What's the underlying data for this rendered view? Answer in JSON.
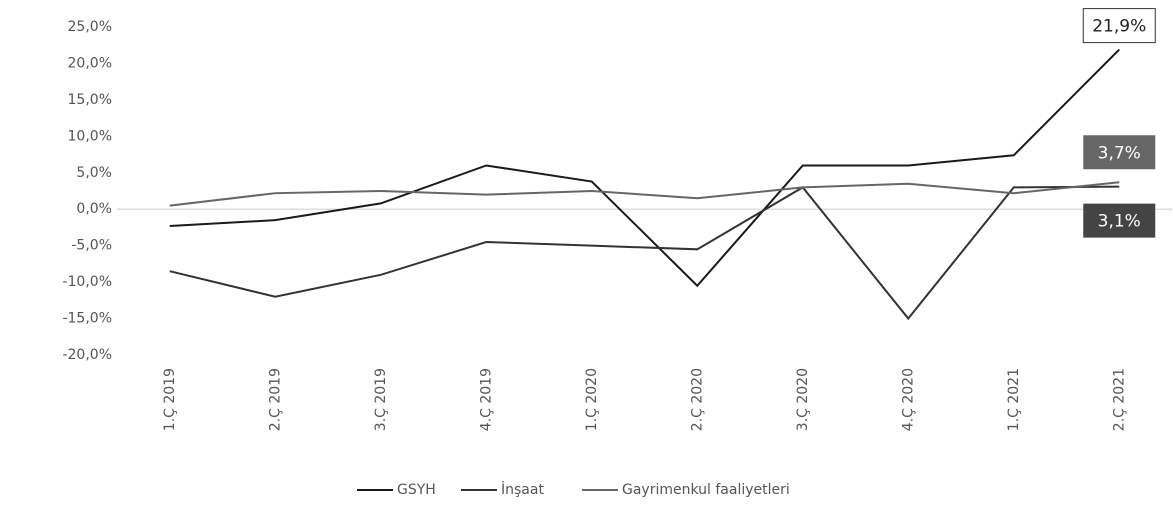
{
  "chart_data": {
    "type": "line",
    "categories": [
      "1.Ç 2019",
      "2.Ç 2019",
      "3.Ç 2019",
      "4.Ç 2019",
      "1.Ç 2020",
      "2.Ç 2020",
      "3.Ç 2020",
      "4.Ç 2020",
      "1.Ç 2021",
      "2.Ç 2021"
    ],
    "series": [
      {
        "name": "GSYH",
        "color": "#1a1a1a",
        "values": [
          -2.3,
          -1.5,
          0.8,
          6.0,
          3.8,
          -10.5,
          6.0,
          6.0,
          7.4,
          21.9
        ],
        "value_labels": [
          null,
          null,
          null,
          null,
          null,
          null,
          null,
          null,
          null,
          "21,9%"
        ]
      },
      {
        "name": "İnşaat",
        "color": "#333333",
        "values": [
          -8.5,
          -12.0,
          -9.0,
          -4.5,
          -5.0,
          -5.5,
          3.0,
          -15.0,
          3.0,
          3.1
        ],
        "value_labels": [
          null,
          null,
          null,
          null,
          null,
          null,
          null,
          null,
          null,
          "3,1%"
        ]
      },
      {
        "name": "Gayrimenkul faaliyetleri",
        "color": "#666666",
        "values": [
          0.5,
          2.2,
          2.5,
          2.0,
          2.5,
          1.5,
          3.0,
          3.5,
          2.2,
          3.7
        ],
        "value_labels": [
          null,
          null,
          null,
          null,
          null,
          null,
          null,
          null,
          null,
          "3,7%"
        ]
      }
    ],
    "ylim": [
      -20,
      25
    ],
    "yticks": [
      {
        "value": -20,
        "label": "-20,0%"
      },
      {
        "value": -15,
        "label": "-15,0%"
      },
      {
        "value": -10,
        "label": "-10,0%"
      },
      {
        "value": -5,
        "label": "-5,0%"
      },
      {
        "value": 0,
        "label": "0,0%"
      },
      {
        "value": 5,
        "label": "5,0%"
      },
      {
        "value": 10,
        "label": "10,0%"
      },
      {
        "value": 15,
        "label": "15,0%"
      },
      {
        "value": 20,
        "label": "20,0%"
      },
      {
        "value": 25,
        "label": "25,0%"
      }
    ],
    "grid": false,
    "legend": "bottom"
  }
}
